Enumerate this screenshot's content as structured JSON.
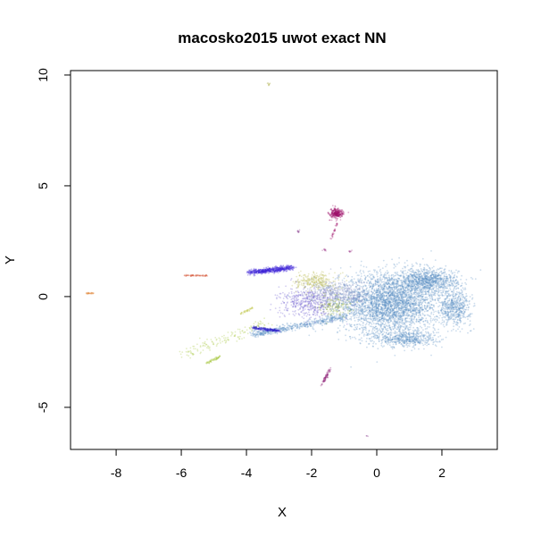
{
  "chart_data": {
    "type": "scatter",
    "title": "macosko2015 uwot exact NN",
    "xlabel": "X",
    "ylabel": "Y",
    "xlim": [
      -9.4,
      3.7
    ],
    "ylim": [
      -6.9,
      10.2
    ],
    "xticks": [
      -8,
      -6,
      -4,
      -2,
      0,
      2
    ],
    "yticks": [
      -5,
      0,
      5,
      10
    ],
    "grid": false,
    "legend": "none",
    "point_alpha": 0.15,
    "clusters": [
      {
        "shape": "blob",
        "center": [
          0.4,
          -0.3
        ],
        "spread": [
          1.4,
          1.25
        ],
        "n": 3200,
        "color": "#5b8fc4"
      },
      {
        "shape": "blob",
        "center": [
          1.6,
          0.7
        ],
        "spread": [
          0.8,
          0.5
        ],
        "n": 900,
        "color": "#5b8fc4"
      },
      {
        "shape": "blob",
        "center": [
          2.4,
          -0.5
        ],
        "spread": [
          0.45,
          0.7
        ],
        "n": 500,
        "color": "#5b8fc4"
      },
      {
        "shape": "blob",
        "center": [
          0.9,
          -1.9
        ],
        "spread": [
          0.9,
          0.35
        ],
        "n": 500,
        "color": "#5b8fc4"
      },
      {
        "shape": "arc",
        "from": [
          -3.8,
          -1.7
        ],
        "to": [
          -0.9,
          -0.9
        ],
        "width": 0.15,
        "n": 500,
        "color": "#5b8fc4"
      },
      {
        "shape": "blob",
        "center": [
          -1.2,
          0.1
        ],
        "spread": [
          0.9,
          0.55
        ],
        "n": 500,
        "color": "#7e8cc0"
      },
      {
        "shape": "blob",
        "center": [
          -2.1,
          -0.3
        ],
        "spread": [
          0.8,
          0.6
        ],
        "n": 450,
        "color": "#6f5fd0"
      },
      {
        "shape": "blob",
        "center": [
          -1.9,
          0.7
        ],
        "spread": [
          0.55,
          0.35
        ],
        "n": 250,
        "color": "#b9b850"
      },
      {
        "shape": "blob",
        "center": [
          -1.3,
          -0.4
        ],
        "spread": [
          0.45,
          0.45
        ],
        "n": 150,
        "color": "#9fb84a"
      },
      {
        "shape": "arc",
        "from": [
          -3.9,
          1.1
        ],
        "to": [
          -2.6,
          1.3
        ],
        "width": 0.12,
        "n": 550,
        "color": "#3a22d6"
      },
      {
        "shape": "arc",
        "from": [
          -3.8,
          -1.4
        ],
        "to": [
          -3.0,
          -1.55
        ],
        "width": 0.07,
        "n": 200,
        "color": "#2a1fc9"
      },
      {
        "shape": "blob",
        "center": [
          -1.25,
          3.75
        ],
        "spread": [
          0.18,
          0.2
        ],
        "n": 300,
        "color": "#a0106a"
      },
      {
        "shape": "arc",
        "from": [
          -1.4,
          2.6
        ],
        "to": [
          -1.2,
          3.4
        ],
        "width": 0.03,
        "n": 30,
        "color": "#a0106a"
      },
      {
        "shape": "arc",
        "from": [
          -1.7,
          -4.0
        ],
        "to": [
          -1.4,
          -3.2
        ],
        "width": 0.04,
        "n": 70,
        "color": "#8c1a75"
      },
      {
        "shape": "arc",
        "from": [
          -5.9,
          0.95
        ],
        "to": [
          -5.2,
          0.95
        ],
        "width": 0.03,
        "n": 70,
        "color": "#d65a3a"
      },
      {
        "shape": "arc",
        "from": [
          -8.9,
          0.15
        ],
        "to": [
          -8.7,
          0.15
        ],
        "width": 0.03,
        "n": 30,
        "color": "#e0883a"
      },
      {
        "shape": "blob",
        "center": [
          -3.3,
          9.6
        ],
        "spread": [
          0.05,
          0.05
        ],
        "n": 8,
        "color": "#a8a83a"
      },
      {
        "shape": "blob",
        "center": [
          -2.4,
          2.95
        ],
        "spread": [
          0.04,
          0.05
        ],
        "n": 8,
        "color": "#7a2880"
      },
      {
        "shape": "blob",
        "center": [
          -0.3,
          -6.3
        ],
        "spread": [
          0.02,
          0.02
        ],
        "n": 3,
        "color": "#7a2880"
      },
      {
        "shape": "blob",
        "center": [
          -1.6,
          2.1
        ],
        "spread": [
          0.05,
          0.05
        ],
        "n": 10,
        "color": "#a03a8a"
      },
      {
        "shape": "blob",
        "center": [
          -0.8,
          2.05
        ],
        "spread": [
          0.05,
          0.04
        ],
        "n": 8,
        "color": "#a03a8a"
      },
      {
        "shape": "arc",
        "from": [
          -6.0,
          -2.7
        ],
        "to": [
          -3.4,
          -1.2
        ],
        "width": 0.25,
        "n": 140,
        "color": "#a6c83a"
      },
      {
        "shape": "arc",
        "from": [
          -5.2,
          -3.0
        ],
        "to": [
          -4.8,
          -2.7
        ],
        "width": 0.05,
        "n": 60,
        "color": "#a6c83a"
      },
      {
        "shape": "arc",
        "from": [
          -4.2,
          -0.8
        ],
        "to": [
          -3.8,
          -0.5
        ],
        "width": 0.04,
        "n": 40,
        "color": "#c0c84a"
      }
    ]
  }
}
